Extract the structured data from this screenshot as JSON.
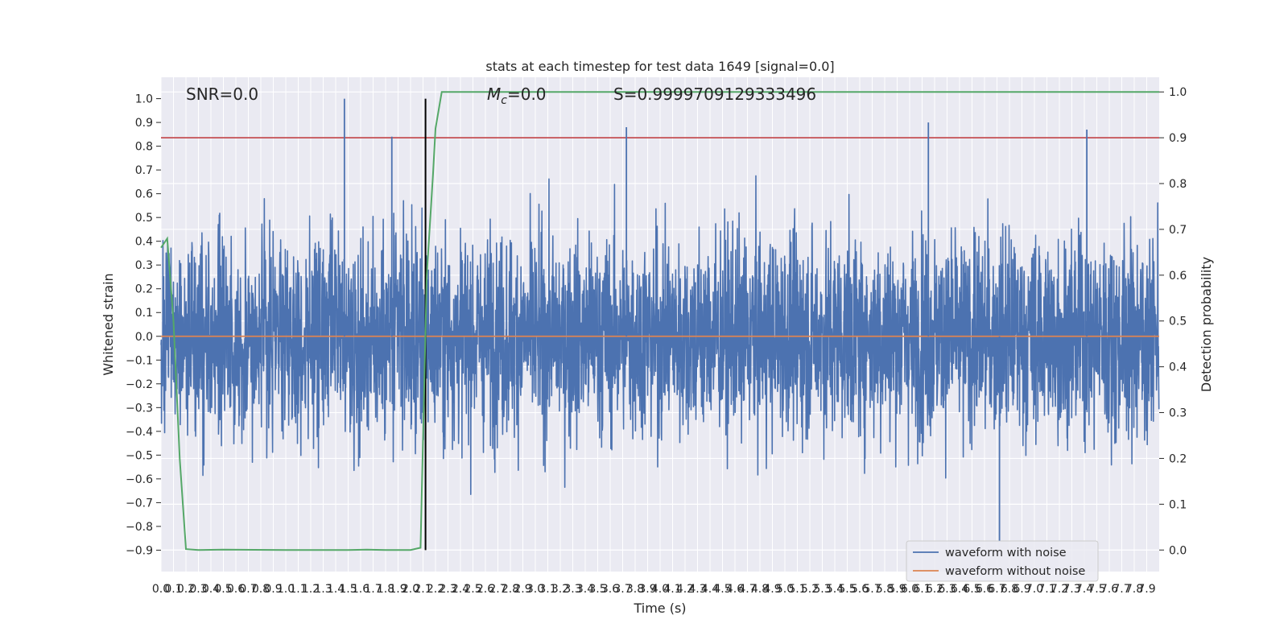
{
  "chart_data": {
    "type": "line",
    "title": "stats at each timestep for test data 1649 [signal=0.0]",
    "xlabel": "Time (s)",
    "ylabel": "Whitened strain",
    "y2label": "Detection probability",
    "xlim": [
      0.0,
      8.0
    ],
    "ylim": [
      -0.99,
      1.09
    ],
    "y2lim": [
      -0.047,
      1.032
    ],
    "grid": true,
    "x_ticks": [
      "0.0",
      "0.1",
      "0.2",
      "0.3",
      "0.4",
      "0.5",
      "0.6",
      "0.7",
      "0.8",
      "0.9",
      "1.0",
      "1.1",
      "1.2",
      "1.3",
      "1.4",
      "1.5",
      "1.6",
      "1.7",
      "1.8",
      "1.9",
      "2.0",
      "2.1",
      "2.2",
      "2.3",
      "2.4",
      "2.5",
      "2.6",
      "2.7",
      "2.8",
      "2.9",
      "3.0",
      "3.1",
      "3.2",
      "3.3",
      "3.4",
      "3.5",
      "3.6",
      "3.7",
      "3.8",
      "3.9",
      "4.0",
      "4.1",
      "4.2",
      "4.3",
      "4.4",
      "4.5",
      "4.6",
      "4.7",
      "4.8",
      "4.9",
      "5.0",
      "5.1",
      "5.2",
      "5.3",
      "5.4",
      "5.5",
      "5.6",
      "5.7",
      "5.8",
      "5.9",
      "6.0",
      "6.1",
      "6.2",
      "6.3",
      "6.4",
      "6.5",
      "6.6",
      "6.7",
      "6.8",
      "6.9",
      "7.0",
      "7.1",
      "7.2",
      "7.3",
      "7.4",
      "7.5",
      "7.6",
      "7.7",
      "7.8",
      "7.9"
    ],
    "y_ticks": [
      "1.0",
      "0.9",
      "0.8",
      "0.7",
      "0.6",
      "0.5",
      "0.4",
      "0.3",
      "0.2",
      "0.1",
      "0.0",
      "−0.1",
      "−0.2",
      "−0.3",
      "−0.4",
      "−0.5",
      "−0.6",
      "−0.7",
      "−0.8",
      "−0.9"
    ],
    "y2_ticks": [
      "1.0",
      "0.9",
      "0.8",
      "0.7",
      "0.6",
      "0.5",
      "0.4",
      "0.3",
      "0.2",
      "0.1",
      "0.0"
    ],
    "noise_waveform": {
      "name": "waveform with noise",
      "color": "#4c72b0",
      "sample_rate_hz": 512,
      "typical_range": [
        -0.55,
        0.55
      ],
      "max": 1.0,
      "min": -0.86
    },
    "clean_waveform": {
      "name": "waveform without noise",
      "color": "#dd8452",
      "value": 0.0
    },
    "detection_probability": {
      "color": "#55a868",
      "x": [
        0.0,
        0.05,
        0.1,
        0.15,
        0.2,
        0.3,
        0.5,
        1.0,
        1.5,
        1.65,
        1.8,
        2.0,
        2.08,
        2.13,
        2.18,
        2.2,
        2.25,
        2.5,
        8.0
      ],
      "y": [
        0.66,
        0.68,
        0.5,
        0.2,
        0.002,
        0.0,
        0.001,
        0.0,
        0.0,
        0.001,
        0.0,
        0.0,
        0.005,
        0.6,
        0.82,
        0.92,
        1.0,
        1.0,
        1.0
      ]
    },
    "threshold": {
      "value": 0.9,
      "axis": "y2",
      "color": "#c44e52"
    },
    "marker_line": {
      "x": 2.12,
      "y_range": [
        -0.9,
        1.0
      ],
      "color": "#000000"
    },
    "annotations": {
      "snr": "SNR=0.0",
      "mc_symbol": "M",
      "mc_subscript": "c",
      "mc_value": "=0.0",
      "s_value": "S=0.9999709129333496"
    },
    "legend": {
      "placement": "lower-right",
      "entries": [
        "waveform with noise",
        "waveform without noise"
      ]
    }
  }
}
